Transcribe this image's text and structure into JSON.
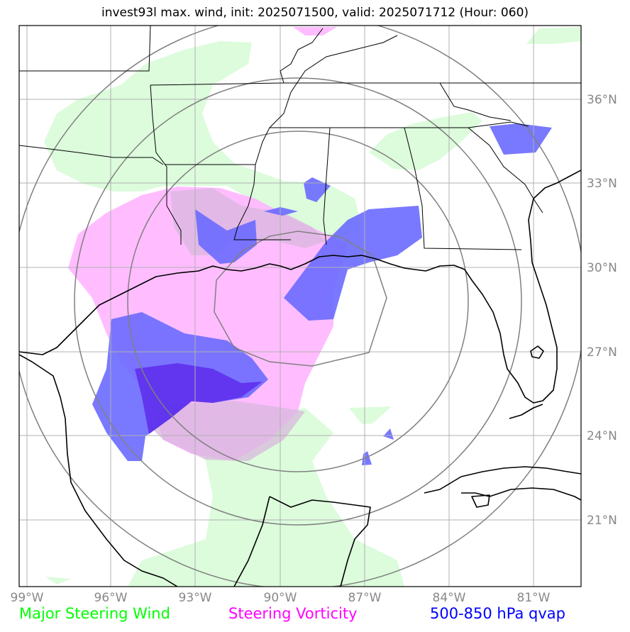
{
  "title": "invest93l max. wind, init: 2025071500, valid: 2025071712 (Hour: 060)",
  "lat_labels": [
    "36°N",
    "33°N",
    "30°N",
    "27°N",
    "24°N",
    "21°N"
  ],
  "lon_labels": [
    "99°W",
    "96°W",
    "93°W",
    "90°W",
    "87°W",
    "84°W",
    "81°W"
  ],
  "legend": [
    {
      "label": "Major Steering Wind",
      "color": "#00ff00"
    },
    {
      "label": "Steering Vorticity",
      "color": "#ff00ff"
    },
    {
      "label": "500-850 hPa qvap",
      "color": "#0000ff"
    }
  ],
  "colors": {
    "steering_wind_fill": "#dcfcdc",
    "vorticity_fill": "#ffb2ff",
    "qvap_fill": "#7272ff",
    "coast": "#000000",
    "grid": "#b0b0b0",
    "range_rings": "#808080"
  },
  "icons": [
    "range-rings",
    "coastline",
    "state-borders"
  ]
}
